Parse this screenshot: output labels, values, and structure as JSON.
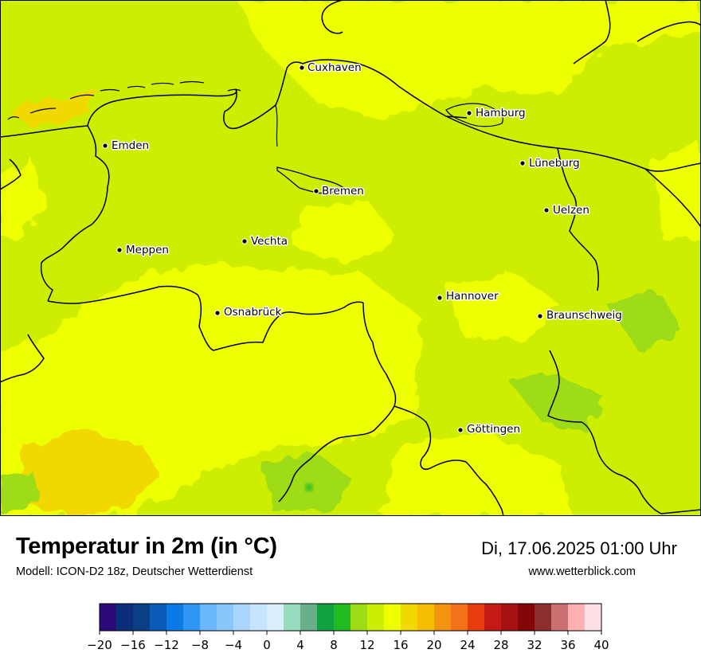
{
  "map": {
    "cities": [
      {
        "name": "Cuxhaven"
      },
      {
        "name": "Hamburg"
      },
      {
        "name": "Emden"
      },
      {
        "name": "Lüneburg"
      },
      {
        "name": "Bremen"
      },
      {
        "name": "Uelzen"
      },
      {
        "name": "Vechta"
      },
      {
        "name": "Meppen"
      },
      {
        "name": "Hannover"
      },
      {
        "name": "Osnabrück"
      },
      {
        "name": "Braunschweig"
      },
      {
        "name": "Göttingen"
      }
    ]
  },
  "footer": {
    "title": "Temperatur in 2m (in °C)",
    "subtitle": "Modell: ICON-D2 18z, Deutscher Wetterdienst",
    "datetime": "Di, 17.06.2025 01:00 Uhr",
    "website": "www.wetterblick.com"
  },
  "legend": {
    "ticks": [
      "−20",
      "−16",
      "−12",
      "−8",
      "−4",
      "0",
      "4",
      "8",
      "12",
      "16",
      "20",
      "24",
      "28",
      "32",
      "36",
      "40"
    ],
    "colors": [
      "#2d0a7a",
      "#0b2e7a",
      "#0a3f86",
      "#0a5bb8",
      "#0a7be6",
      "#2f96f5",
      "#6ab7fb",
      "#89c6fb",
      "#a8d6fd",
      "#c6e4fe",
      "#dbeeff",
      "#98dcc0",
      "#6aae8c",
      "#0fa040",
      "#21bb21",
      "#9ddc12",
      "#ccee00",
      "#eeff00",
      "#f1d800",
      "#f3bf00",
      "#f39410",
      "#f37117",
      "#e83c0e",
      "#c31a14",
      "#a61214",
      "#840606",
      "#8c2e2e",
      "#c97070",
      "#ffb0b0",
      "#ffe0e6"
    ],
    "map_colors": {
      "base_green": "#cdee00",
      "yellow": "#eeff00",
      "gold": "#f1d800",
      "deep_green": "#9ddc12"
    }
  }
}
